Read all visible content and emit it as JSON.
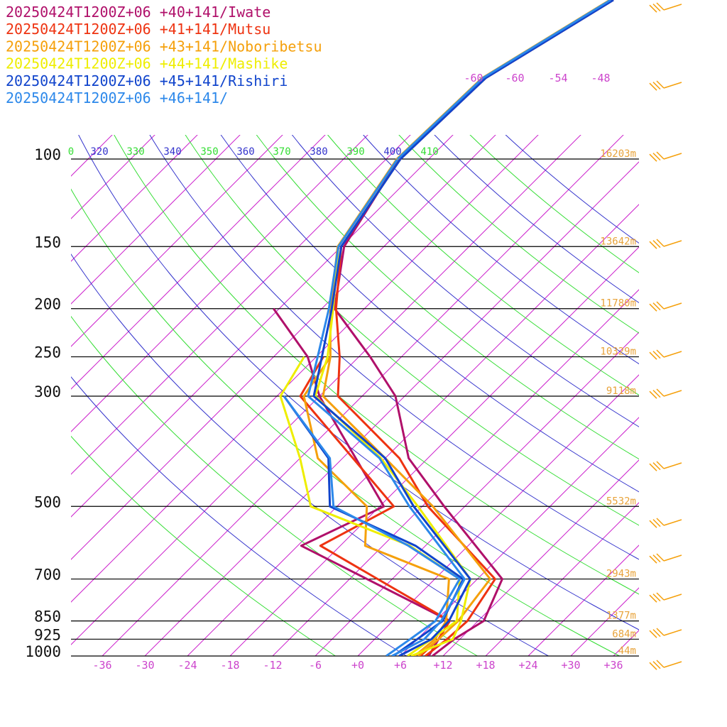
{
  "chart_data": {
    "type": "line",
    "series": [
      {
        "name": "20250424T1200Z+06 +40+141/Iwate",
        "color": "#b0106a",
        "temp": [
          [
            1000,
            10.5
          ],
          [
            925,
            11.2
          ],
          [
            850,
            12.8
          ],
          [
            700,
            9.5
          ],
          [
            500,
            -8.9
          ],
          [
            400,
            -20.7
          ],
          [
            300,
            -31.3
          ],
          [
            250,
            -40.4
          ],
          [
            200,
            -52.2
          ],
          [
            150,
            -59.6
          ],
          [
            100,
            -64.2
          ]
        ],
        "dewpt": [
          [
            1000,
            10.0
          ],
          [
            925,
            9.0
          ],
          [
            850,
            8.0
          ],
          [
            600,
            -23.5
          ],
          [
            500,
            -17.4
          ],
          [
            300,
            -42.0
          ],
          [
            250,
            -49.2
          ],
          [
            200,
            -60.8
          ]
        ]
      },
      {
        "name": "20250424T1200Z+06 +41+141/Mutsu",
        "color": "#ee3311",
        "temp": [
          [
            1000,
            9.5
          ],
          [
            925,
            10.2
          ],
          [
            850,
            10.5
          ],
          [
            700,
            8.5
          ],
          [
            500,
            -11.2
          ],
          [
            400,
            -22.0
          ],
          [
            300,
            -39.4
          ],
          [
            250,
            -44.7
          ],
          [
            200,
            -52.0
          ],
          [
            150,
            -60.0
          ],
          [
            100,
            -64.0
          ]
        ],
        "dewpt": [
          [
            1000,
            8.8
          ],
          [
            925,
            9.0
          ],
          [
            850,
            8.0
          ],
          [
            600,
            -20.8
          ],
          [
            500,
            -16.0
          ],
          [
            300,
            -44.7
          ],
          [
            250,
            -47.0
          ]
        ]
      },
      {
        "name": "20250424T1200Z+06 +43+141/Noboribetsu",
        "color": "#f5a00b",
        "temp": [
          [
            1000,
            8.5
          ],
          [
            925,
            9.0
          ],
          [
            850,
            9.2
          ],
          [
            700,
            7.8
          ],
          [
            500,
            -10.5
          ],
          [
            400,
            -24.0
          ],
          [
            300,
            -41.5
          ],
          [
            250,
            -46.0
          ],
          [
            200,
            -52.8
          ],
          [
            150,
            -60.5
          ],
          [
            100,
            -64.5
          ]
        ],
        "dewpt": [
          [
            1000,
            8.0
          ],
          [
            925,
            8.5
          ],
          [
            850,
            7.5
          ],
          [
            700,
            2.0
          ],
          [
            600,
            -14.5
          ],
          [
            500,
            -19.8
          ],
          [
            400,
            -33.5
          ],
          [
            300,
            -44.2
          ],
          [
            250,
            -46.0
          ]
        ]
      },
      {
        "name": "20250424T1200Z+06 +44+141/Mashike",
        "color": "#eeee00",
        "temp": [
          [
            1000,
            7.5
          ],
          [
            925,
            11.0
          ],
          [
            850,
            9.6
          ],
          [
            700,
            5.0
          ],
          [
            500,
            -12.6
          ],
          [
            400,
            -24.6
          ],
          [
            300,
            -42.6
          ],
          [
            250,
            -46.4
          ],
          [
            200,
            -52.4
          ],
          [
            150,
            -60.4
          ],
          [
            100,
            -64.4
          ]
        ],
        "dewpt": [
          [
            1000,
            7.0
          ],
          [
            925,
            8.0
          ],
          [
            850,
            9.0
          ],
          [
            700,
            3.5
          ],
          [
            600,
            -8.2
          ],
          [
            500,
            -27.7
          ],
          [
            400,
            -36.0
          ],
          [
            300,
            -47.5
          ],
          [
            250,
            -49.7
          ]
        ]
      },
      {
        "name": "20250424T1200Z+06 +45+141/Rishiri",
        "color": "#1044cc",
        "temp": [
          [
            1000,
            5.8
          ],
          [
            925,
            8.0
          ],
          [
            850,
            7.9
          ],
          [
            700,
            5.0
          ],
          [
            500,
            -13.2
          ],
          [
            400,
            -24.0
          ],
          [
            300,
            -42.8
          ],
          [
            250,
            -47.2
          ],
          [
            200,
            -52.6
          ],
          [
            150,
            -60.0
          ],
          [
            100,
            -64.0
          ]
        ],
        "dewpt": [
          [
            1000,
            5.0
          ],
          [
            925,
            6.0
          ],
          [
            850,
            7.0
          ],
          [
            700,
            4.0
          ],
          [
            600,
            -7.4
          ],
          [
            500,
            -25.0
          ],
          [
            400,
            -32.0
          ],
          [
            300,
            -47.0
          ]
        ]
      },
      {
        "name": "20250424T1200Z+06 +46+141/",
        "color": "#2c88ea",
        "temp": [
          [
            1000,
            4.8
          ],
          [
            925,
            7.0
          ],
          [
            850,
            6.8
          ],
          [
            700,
            4.2
          ],
          [
            500,
            -13.8
          ],
          [
            400,
            -24.8
          ],
          [
            300,
            -43.6
          ],
          [
            250,
            -47.8
          ],
          [
            200,
            -53.0
          ],
          [
            150,
            -60.4
          ],
          [
            100,
            -64.4
          ]
        ],
        "dewpt": [
          [
            1000,
            4.0
          ],
          [
            925,
            5.0
          ],
          [
            850,
            6.0
          ],
          [
            700,
            3.5
          ],
          [
            600,
            -8.4
          ],
          [
            500,
            -24.5
          ],
          [
            400,
            -31.8
          ],
          [
            300,
            -47.0
          ]
        ]
      }
    ],
    "pressure_levels": [
      "100",
      "150",
      "200",
      "250",
      "300",
      "500",
      "700",
      "850",
      "925",
      "1000"
    ],
    "temperature_ticks": [
      "-36",
      "-30",
      "-24",
      "-18",
      "-12",
      "-6",
      "+0",
      "+6",
      "+12",
      "+18",
      "+24",
      "+30",
      "+36"
    ],
    "height_labels": [
      {
        "p": 100,
        "label": "16203m"
      },
      {
        "p": 150,
        "label": "13642m"
      },
      {
        "p": 200,
        "label": "11780m"
      },
      {
        "p": 250,
        "label": "10329m"
      },
      {
        "p": 300,
        "label": "9118m"
      },
      {
        "p": 500,
        "label": "5532m"
      },
      {
        "p": 700,
        "label": "2943m"
      },
      {
        "p": 850,
        "label": "1377m"
      },
      {
        "p": 925,
        "label": "684m"
      },
      {
        "p": 1000,
        "label": "44m"
      }
    ],
    "theta_labels": [
      "0",
      "320",
      "330",
      "340",
      "350",
      "360",
      "370",
      "380",
      "390",
      "400",
      "410"
    ],
    "top_isotherm_labels": [
      "-60",
      "-60",
      "-54",
      "-48"
    ],
    "y_scale": "log-pressure",
    "skew": "skew-T",
    "colors": {
      "isotherm": "#cc22cc",
      "dry_adiabat_green": "#33dd33",
      "dry_adiabat_blue": "#3333cc",
      "pressure_line": "#000000",
      "height_label": "#e8a33a",
      "barb": "#f5a00b"
    }
  }
}
